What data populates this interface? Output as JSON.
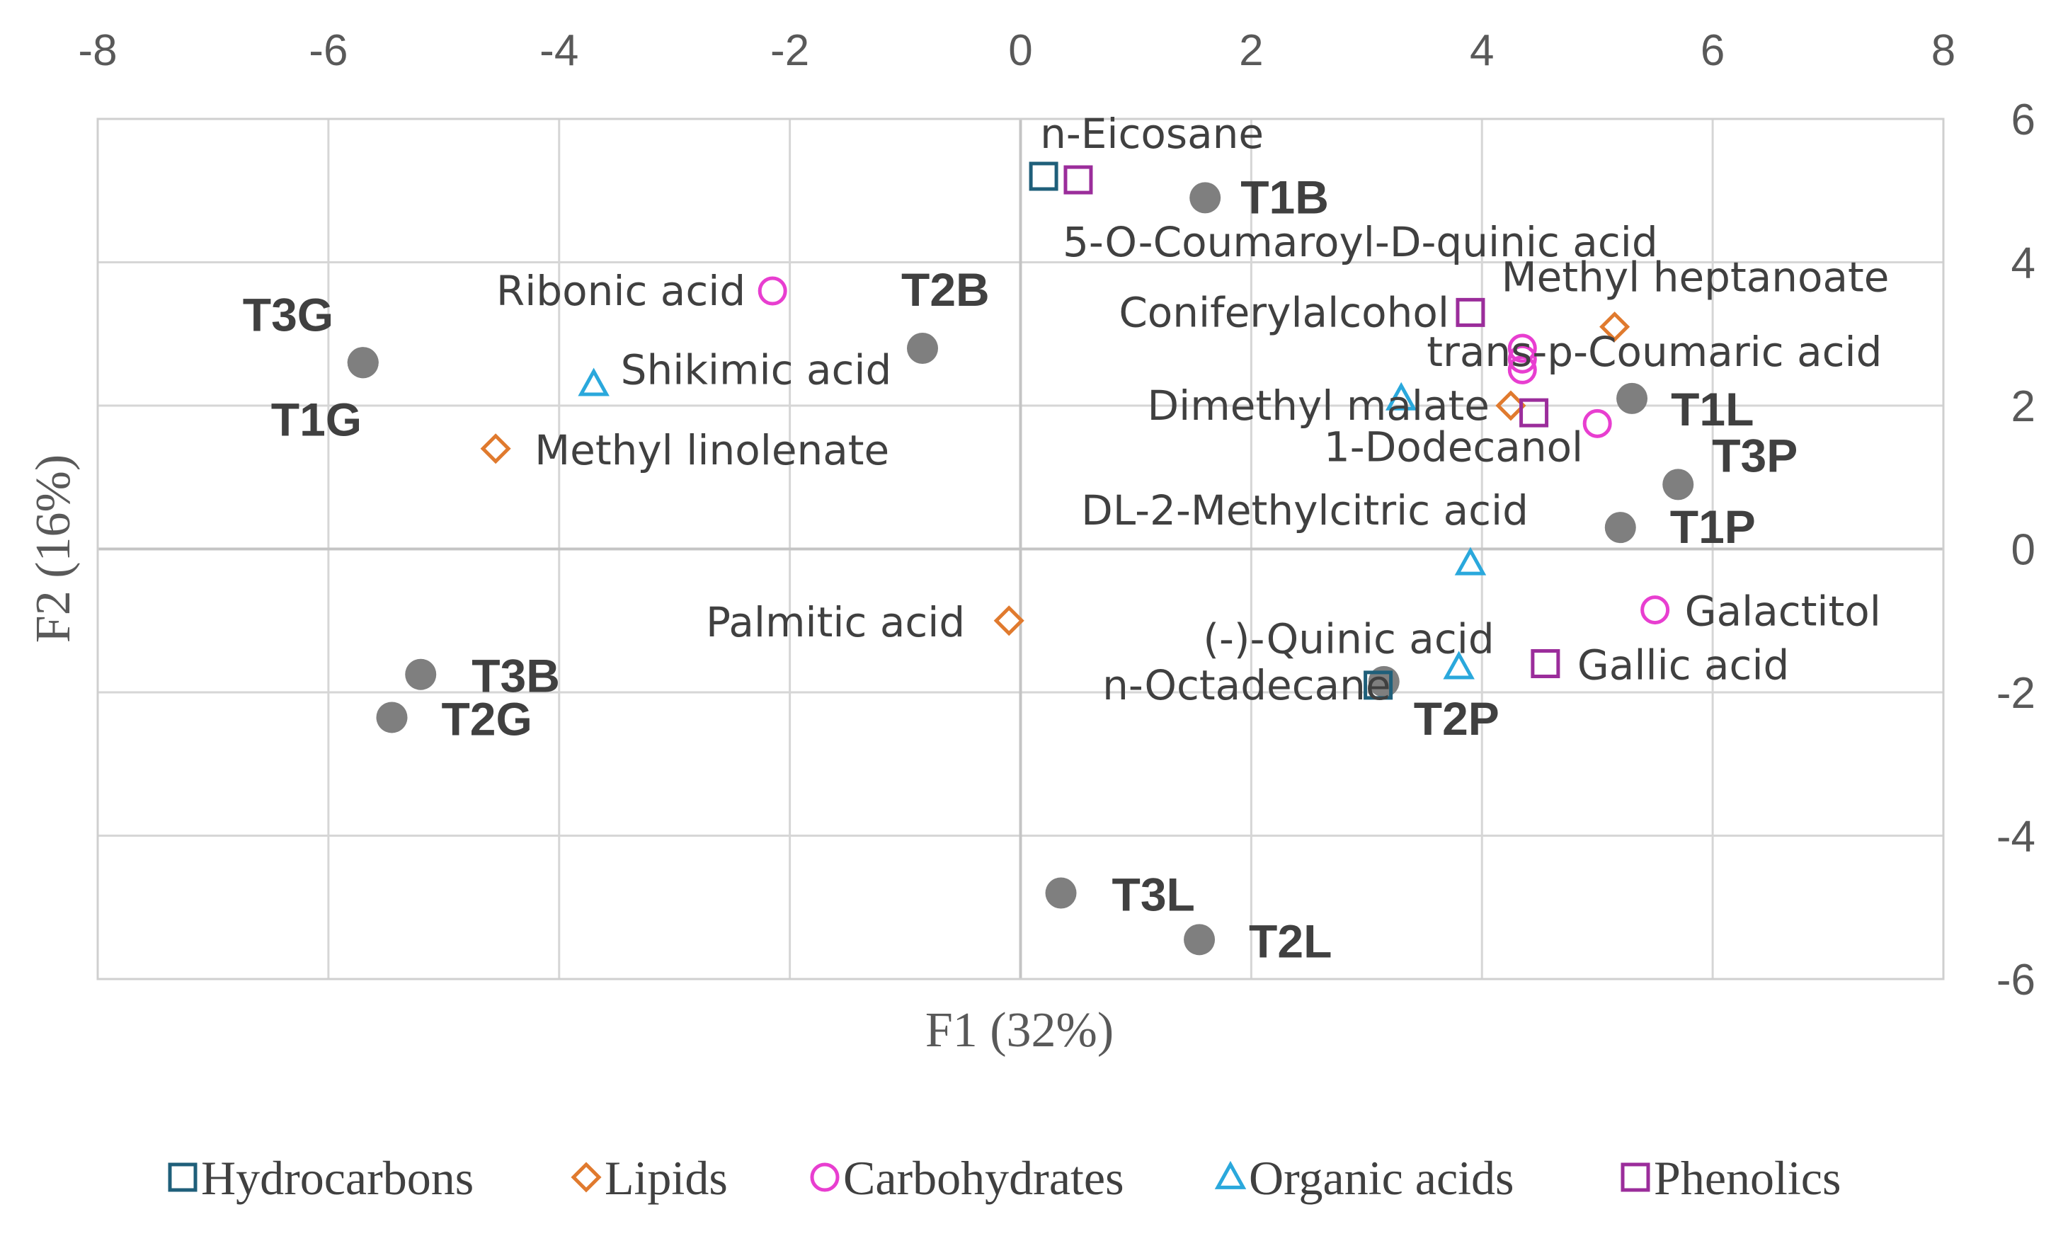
{
  "chart_data": {
    "type": "scatter",
    "title": "",
    "xlabel": "F1 (32%)",
    "ylabel": "F2 (16%)",
    "xlim": [
      -8,
      8
    ],
    "ylim": [
      -6,
      6
    ],
    "xticks": [
      -8,
      -6,
      -4,
      -2,
      0,
      2,
      4,
      6,
      8
    ],
    "yticks": [
      6,
      4,
      2,
      0,
      -2,
      -4,
      -6
    ],
    "grid": true,
    "legend_position": "bottom",
    "categories": {
      "Hydrocarbons": "#1f5f7a",
      "Lipids": "#e07a2e",
      "Carbohydrates": "#e83ed0",
      "Organic acids": "#2aa8dc",
      "Phenolics": "#9b2d9b"
    },
    "legend": [
      {
        "label": "Hydrocarbons",
        "marker": "square",
        "color": "#1f5f7a"
      },
      {
        "label": "Lipids",
        "marker": "diamond",
        "color": "#e07a2e"
      },
      {
        "label": "Carbohydrates",
        "marker": "circle",
        "color": "#e83ed0"
      },
      {
        "label": "Organic acids",
        "marker": "triangle",
        "color": "#2aa8dc"
      },
      {
        "label": "Phenolics",
        "marker": "square",
        "color": "#9b2d9b"
      }
    ],
    "samples": [
      {
        "label": "T1B",
        "x": 1.6,
        "y": 4.9
      },
      {
        "label": "T2B",
        "x": -0.85,
        "y": 2.8
      },
      {
        "label": "T3G",
        "x": -5.7,
        "y": 2.6
      },
      {
        "label": "T1G",
        "x": -5.7,
        "y": 2.6
      },
      {
        "label": "T1L",
        "x": 5.3,
        "y": 2.1
      },
      {
        "label": "T3P",
        "x": 5.7,
        "y": 0.9
      },
      {
        "label": "T1P",
        "x": 5.2,
        "y": 0.3
      },
      {
        "label": "T3B",
        "x": -5.2,
        "y": -1.75
      },
      {
        "label": "T2G",
        "x": -5.45,
        "y": -2.35
      },
      {
        "label": "T2P",
        "x": 3.15,
        "y": -1.85
      },
      {
        "label": "T3L",
        "x": 0.35,
        "y": -4.8
      },
      {
        "label": "T2L",
        "x": 1.55,
        "y": -5.45
      }
    ],
    "compounds": [
      {
        "label": "n-Eicosane",
        "category": "Hydrocarbons",
        "x": 0.2,
        "y": 5.2
      },
      {
        "label": "n-Octadecane",
        "category": "Hydrocarbons",
        "x": 3.1,
        "y": -1.9
      },
      {
        "label": "Methyl heptanoate",
        "category": "Lipids",
        "x": 5.15,
        "y": 3.1
      },
      {
        "label": "Dimethyl malate",
        "category": "Lipids",
        "x": 4.25,
        "y": 2.0
      },
      {
        "label": "Methyl linolenate",
        "category": "Lipids",
        "x": -4.55,
        "y": 1.4
      },
      {
        "label": "Palmitic acid",
        "category": "Lipids",
        "x": -0.1,
        "y": -1.0
      },
      {
        "label": "Ribonic acid",
        "category": "Carbohydrates",
        "x": -2.15,
        "y": 3.6
      },
      {
        "label": "trans-p-Coumaric acid",
        "category": "Carbohydrates",
        "x": 4.35,
        "y": 2.8
      },
      {
        "label": "",
        "category": "Carbohydrates",
        "x": 4.35,
        "y": 2.65
      },
      {
        "label": "",
        "category": "Carbohydrates",
        "x": 4.35,
        "y": 2.5
      },
      {
        "label": "1-Dodecanol",
        "category": "Carbohydrates",
        "x": 5.0,
        "y": 1.75
      },
      {
        "label": "Galactitol",
        "category": "Carbohydrates",
        "x": 5.5,
        "y": -0.85
      },
      {
        "label": "Shikimic acid",
        "category": "Organic acids",
        "x": -3.7,
        "y": 2.3
      },
      {
        "label": "",
        "category": "Organic acids",
        "x": 3.3,
        "y": 2.1
      },
      {
        "label": "DL-2-Methylcitric acid",
        "category": "Organic acids",
        "x": 3.9,
        "y": -0.2
      },
      {
        "label": "(-)-Quinic acid",
        "category": "Organic acids",
        "x": 3.8,
        "y": -1.65
      },
      {
        "label": "5-O-Coumaroyl-D-quinic acid",
        "category": "Phenolics",
        "x": 0.5,
        "y": 5.15
      },
      {
        "label": "Coniferylalcohol",
        "category": "Phenolics",
        "x": 3.9,
        "y": 3.3
      },
      {
        "label": "",
        "category": "Phenolics",
        "x": 4.45,
        "y": 1.9
      },
      {
        "label": "Gallic acid",
        "category": "Phenolics",
        "x": 4.55,
        "y": -1.6
      }
    ]
  }
}
